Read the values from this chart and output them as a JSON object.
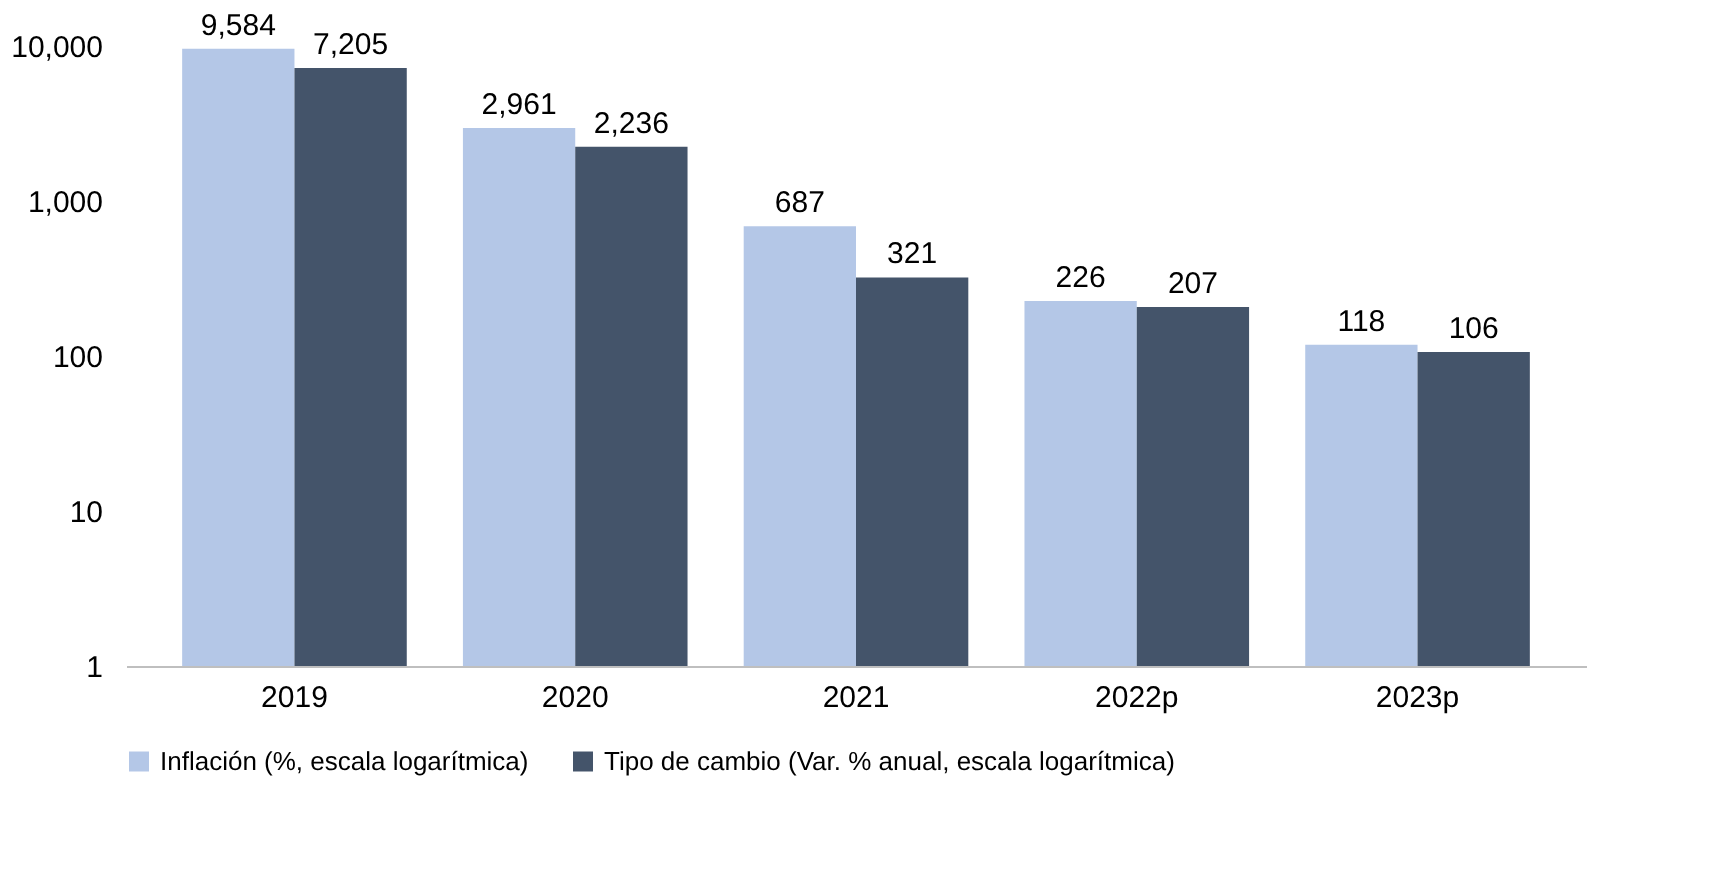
{
  "chart_data": {
    "type": "bar",
    "categories": [
      "2019",
      "2020",
      "2021",
      "2022p",
      "2023p"
    ],
    "series": [
      {
        "name": "Inflación (%, escala logarítmica)",
        "color": "#b4c7e7",
        "values": [
          9584,
          2961,
          687,
          226,
          118
        ],
        "value_labels": [
          "9,584",
          "2,961",
          "687",
          "226",
          "118"
        ]
      },
      {
        "name": "Tipo de cambio  (Var. % anual, escala logarítmica)",
        "color": "#44546a",
        "values": [
          7205,
          2236,
          321,
          207,
          106
        ],
        "value_labels": [
          "7,205",
          "2,236",
          "321",
          "207",
          "106"
        ]
      }
    ],
    "log": "y",
    "ylim": [
      1,
      10000
    ],
    "yticks": [
      1,
      10,
      100,
      {
        "value": 1000,
        "label": "1,000"
      },
      {
        "value": 10000,
        "label": "10,000"
      }
    ],
    "grid": false,
    "legend": "bottom"
  }
}
